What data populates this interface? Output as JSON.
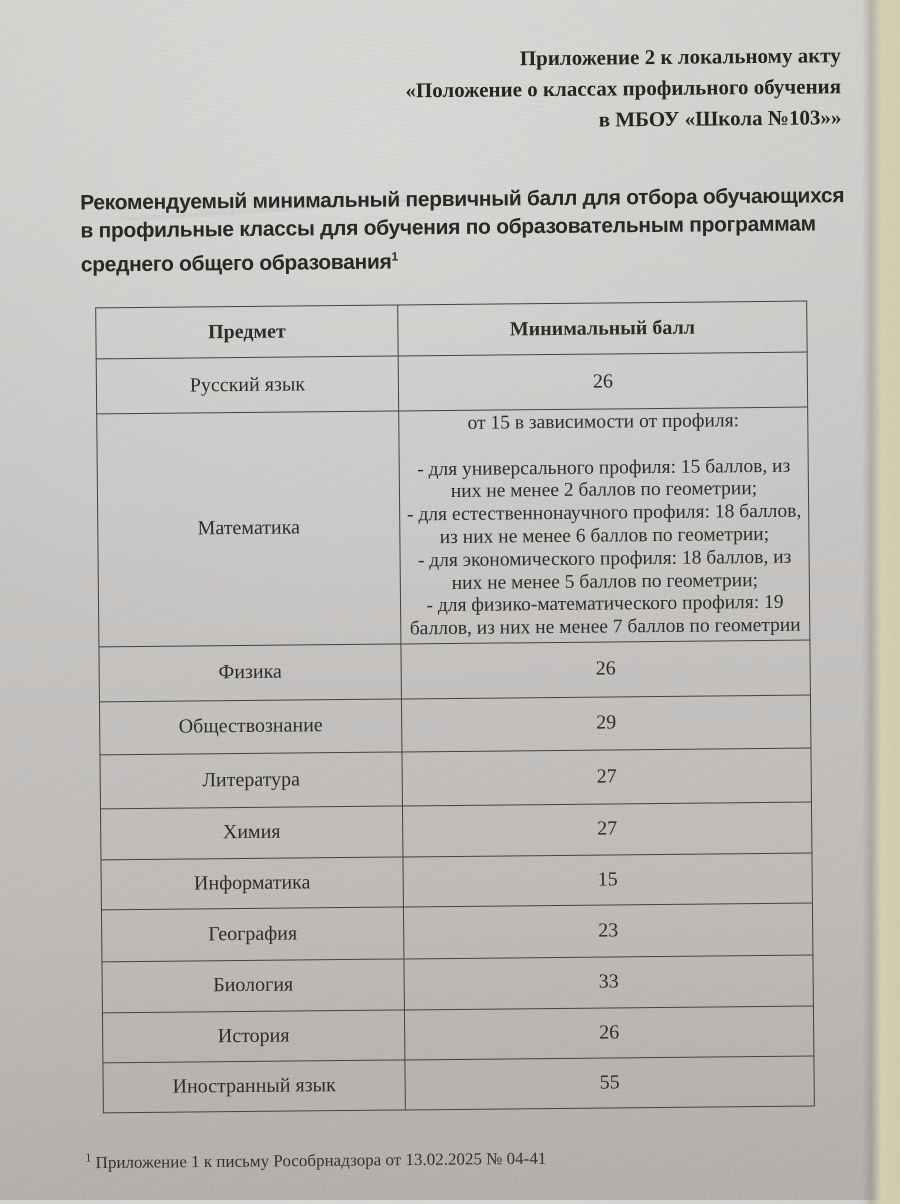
{
  "page": {
    "header_lines": [
      "Приложение 2 к локальному акту",
      "«Положение о классах профильного обучения",
      "в МБОУ «Школа №103»»"
    ],
    "intro_text": "Рекомендуемый минимальный первичный балл для отбора обучающихся в профильные классы для обучения по образовательным программам среднего общего образования",
    "intro_footnote_marker": "1",
    "footnote_marker": "1",
    "footnote_text": "Приложение 1 к письму Рособрнадзора от 13.02.2025 № 04-41"
  },
  "table": {
    "headers": [
      "Предмет",
      "Минимальный балл"
    ],
    "rows": [
      {
        "subject": "Русский язык",
        "score": "26"
      },
      {
        "subject": "Математика",
        "score": "от 15 в зависимости от профиля:\n\n- для универсального профиля: 15 баллов, из них не менее 2 баллов по геометрии;\n- для естественнонаучного профиля: 18 баллов, из них не менее 6 баллов по геометрии;\n- для экономического профиля: 18 баллов, из них не менее 5 баллов по геометрии;\n- для физико-математического профиля: 19 баллов, из них не менее 7 баллов по геометрии"
      },
      {
        "subject": "Физика",
        "score": "26"
      },
      {
        "subject": "Обществознание",
        "score": "29"
      },
      {
        "subject": "Литература",
        "score": "27"
      },
      {
        "subject": "Химия",
        "score": "27"
      },
      {
        "subject": "Информатика",
        "score": "15"
      },
      {
        "subject": "География",
        "score": "23"
      },
      {
        "subject": "Биология",
        "score": "33"
      },
      {
        "subject": "История",
        "score": "26"
      },
      {
        "subject": "Иностранный язык",
        "score": "55"
      }
    ]
  },
  "colors": {
    "paper": "#c6c4c1",
    "table_border": "#45423e",
    "text": "#2b2927",
    "right_edge_strip": "#d3cdb2"
  }
}
